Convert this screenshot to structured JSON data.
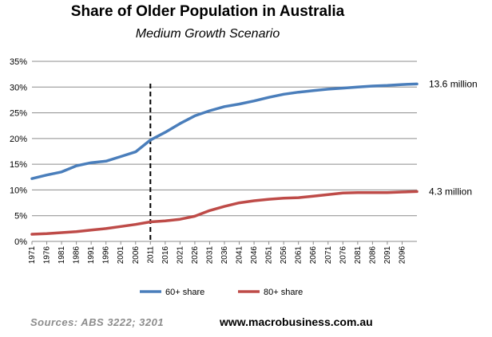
{
  "header": {
    "title": "Share of Older Population in Australia",
    "subtitle": "Medium Growth Scenario"
  },
  "footer": {
    "sources": "Sources:  ABS  3222;  3201",
    "website": "www.macrobusiness.com.au"
  },
  "colors": {
    "series_60": "#4a7ebb",
    "series_80": "#be4b48",
    "grid": "#8c8c8c",
    "marker": "#000000"
  },
  "chart_data": {
    "type": "line",
    "title": "Share of Older Population in Australia",
    "subtitle": "Medium Growth Scenario",
    "xlabel": "",
    "ylabel": "",
    "ylim": [
      0,
      35
    ],
    "ytick_values": [
      0,
      5,
      10,
      15,
      20,
      25,
      30,
      35
    ],
    "ytick_labels": [
      "0%",
      "5%",
      "10%",
      "15%",
      "20%",
      "25%",
      "30%",
      "35%"
    ],
    "grid": true,
    "x_start": 1971,
    "x_end": 2101,
    "xtick_labels": [
      "1971",
      "1976",
      "1981",
      "1986",
      "1991",
      "1996",
      "2001",
      "2006",
      "2011",
      "2016",
      "2021",
      "2026",
      "2031",
      "2036",
      "2041",
      "2046",
      "2051",
      "2056",
      "2061",
      "2066",
      "2071",
      "2076",
      "2081",
      "2086",
      "2091",
      "2096"
    ],
    "marker_year": 2011,
    "legend_position": "bottom",
    "series": [
      {
        "name": "60+ share",
        "points": [
          [
            1971,
            12.2
          ],
          [
            1976,
            12.9
          ],
          [
            1981,
            13.5
          ],
          [
            1986,
            14.7
          ],
          [
            1991,
            15.3
          ],
          [
            1996,
            15.6
          ],
          [
            2001,
            16.5
          ],
          [
            2006,
            17.4
          ],
          [
            2011,
            19.7
          ],
          [
            2016,
            21.2
          ],
          [
            2021,
            22.9
          ],
          [
            2026,
            24.4
          ],
          [
            2031,
            25.4
          ],
          [
            2036,
            26.2
          ],
          [
            2041,
            26.7
          ],
          [
            2046,
            27.3
          ],
          [
            2051,
            28.0
          ],
          [
            2056,
            28.6
          ],
          [
            2061,
            29.0
          ],
          [
            2066,
            29.3
          ],
          [
            2071,
            29.6
          ],
          [
            2076,
            29.8
          ],
          [
            2081,
            30.0
          ],
          [
            2086,
            30.2
          ],
          [
            2091,
            30.3
          ],
          [
            2096,
            30.5
          ],
          [
            2101,
            30.6
          ]
        ],
        "end_label": "13.6 million"
      },
      {
        "name": "80+ share",
        "points": [
          [
            1971,
            1.4
          ],
          [
            1976,
            1.5
          ],
          [
            1981,
            1.7
          ],
          [
            1986,
            1.9
          ],
          [
            1991,
            2.2
          ],
          [
            1996,
            2.5
          ],
          [
            2001,
            2.9
          ],
          [
            2006,
            3.3
          ],
          [
            2011,
            3.8
          ],
          [
            2016,
            4.0
          ],
          [
            2021,
            4.3
          ],
          [
            2026,
            4.9
          ],
          [
            2031,
            6.0
          ],
          [
            2036,
            6.8
          ],
          [
            2041,
            7.5
          ],
          [
            2046,
            7.9
          ],
          [
            2051,
            8.2
          ],
          [
            2056,
            8.4
          ],
          [
            2061,
            8.5
          ],
          [
            2066,
            8.8
          ],
          [
            2071,
            9.1
          ],
          [
            2076,
            9.4
          ],
          [
            2081,
            9.5
          ],
          [
            2086,
            9.5
          ],
          [
            2091,
            9.5
          ],
          [
            2096,
            9.6
          ],
          [
            2101,
            9.7
          ]
        ],
        "end_label": "4.3 million"
      }
    ]
  }
}
